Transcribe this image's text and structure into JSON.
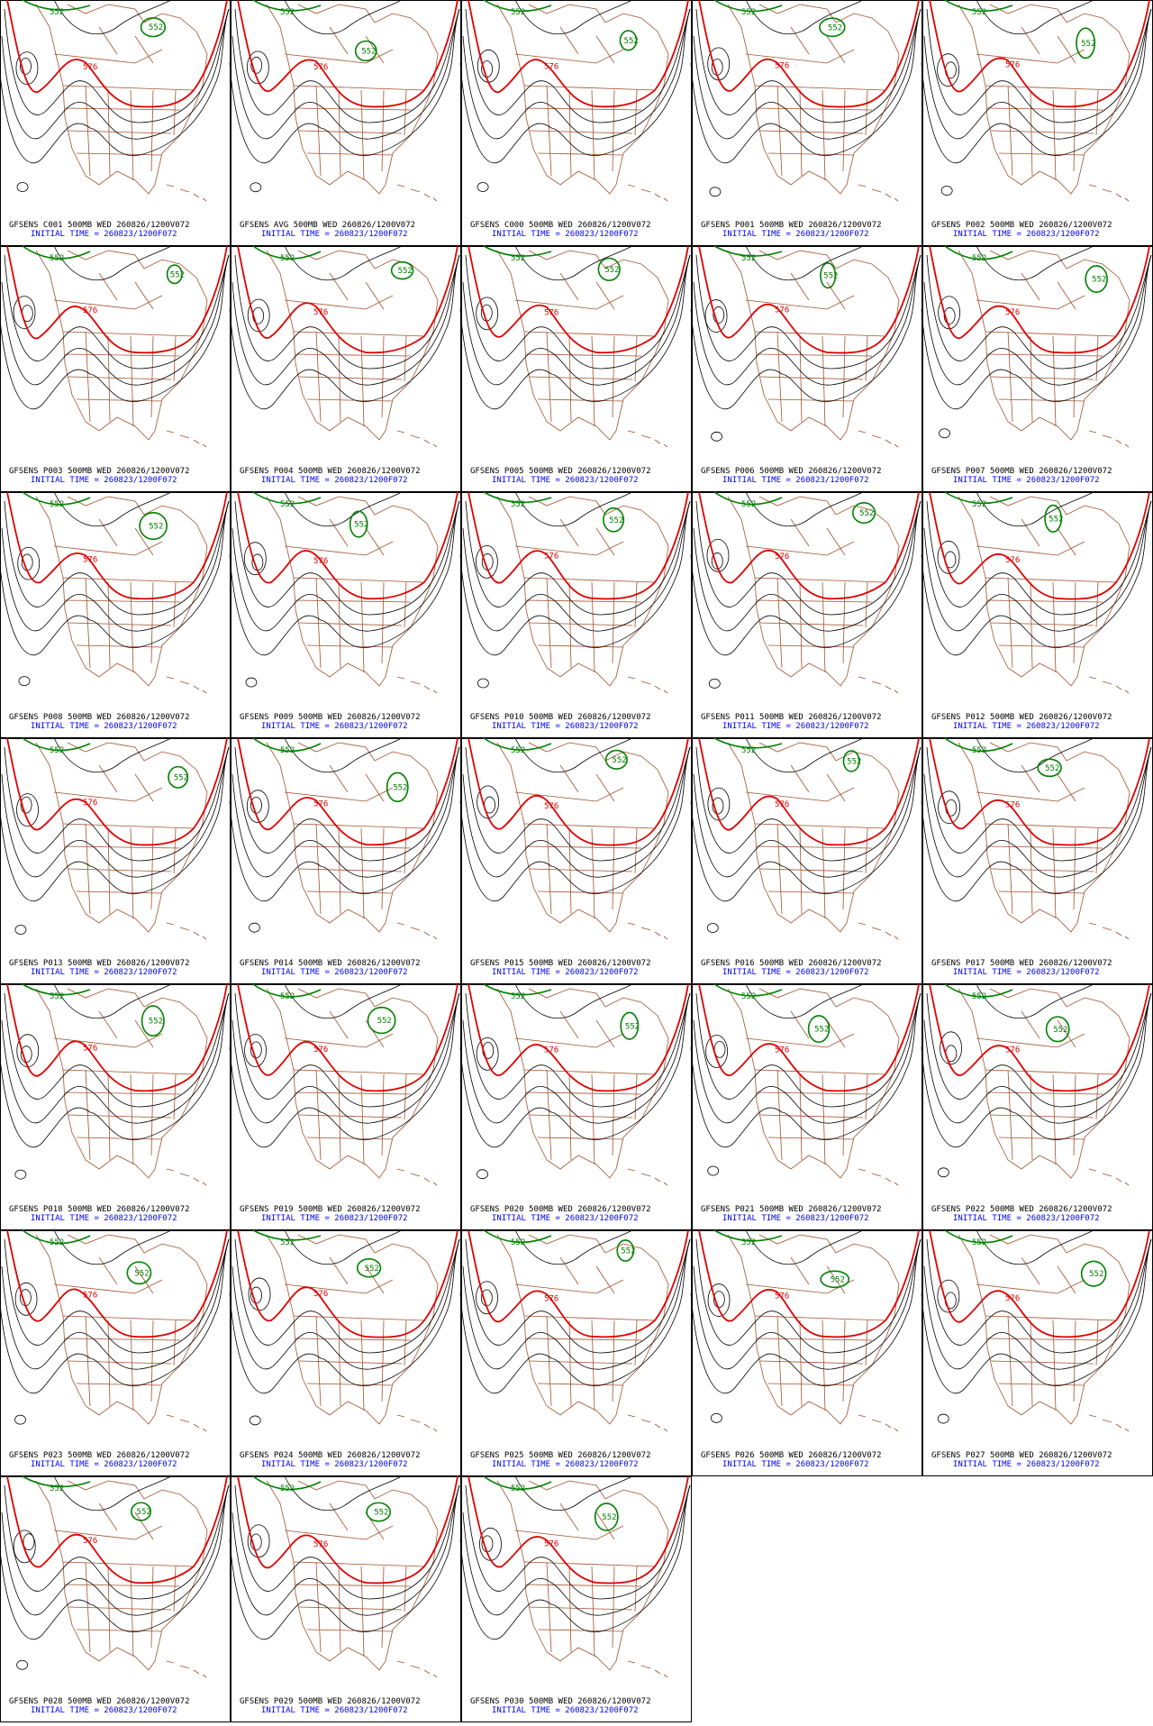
{
  "contour_labels": {
    "low": "552",
    "high": "576"
  },
  "panels": [
    {
      "title": "GFSENS C001 500MB WED 260826/1200V072",
      "initial": "INITIAL TIME = 260823/1200F072"
    },
    {
      "title": "GFSENS AVG 500MB WED 260826/1200V072",
      "initial": "INITIAL TIME = 260823/1200F072"
    },
    {
      "title": "GFSENS C000 500MB WED 260826/1200V072",
      "initial": "INITIAL TIME = 260823/1200F072"
    },
    {
      "title": "GFSENS P001 500MB WED 260826/1200V072",
      "initial": "INITIAL TIME = 260823/1200F072"
    },
    {
      "title": "GFSENS P002 500MB WED 260826/1200V072",
      "initial": "INITIAL TIME = 260823/1200F072"
    },
    {
      "title": "GFSENS P003 500MB WED 260826/1200V072",
      "initial": "INITIAL TIME = 260823/1200F072"
    },
    {
      "title": "GFSENS P004 500MB WED 260826/1200V072",
      "initial": "INITIAL TIME = 260823/1200F072"
    },
    {
      "title": "GFSENS P005 500MB WED 260826/1200V072",
      "initial": "INITIAL TIME = 260823/1200F072"
    },
    {
      "title": "GFSENS P006 500MB WED 260826/1200V072",
      "initial": "INITIAL TIME = 260823/1200F072"
    },
    {
      "title": "GFSENS P007 500MB WED 260826/1200V072",
      "initial": "INITIAL TIME = 260823/1200F072"
    },
    {
      "title": "GFSENS P008 500MB WED 260826/1200V072",
      "initial": "INITIAL TIME = 260823/1200F072"
    },
    {
      "title": "GFSENS P009 500MB WED 260826/1200V072",
      "initial": "INITIAL TIME = 260823/1200F072"
    },
    {
      "title": "GFSENS P010 500MB WED 260826/1200V072",
      "initial": "INITIAL TIME = 260823/1200F072"
    },
    {
      "title": "GFSENS P011 500MB WED 260826/1200V072",
      "initial": "INITIAL TIME = 260823/1200F072"
    },
    {
      "title": "GFSENS P012 500MB WED 260826/1200V072",
      "initial": "INITIAL TIME = 260823/1200F072"
    },
    {
      "title": "GFSENS P013 500MB WED 260826/1200V072",
      "initial": "INITIAL TIME = 260823/1200F072"
    },
    {
      "title": "GFSENS P014 500MB WED 260826/1200V072",
      "initial": "INITIAL TIME = 260823/1200F072"
    },
    {
      "title": "GFSENS P015 500MB WED 260826/1200V072",
      "initial": "INITIAL TIME = 260823/1200F072"
    },
    {
      "title": "GFSENS P016 500MB WED 260826/1200V072",
      "initial": "INITIAL TIME = 260823/1200F072"
    },
    {
      "title": "GFSENS P017 500MB WED 260826/1200V072",
      "initial": "INITIAL TIME = 260823/1200F072"
    },
    {
      "title": "GFSENS P018 500MB WED 260826/1200V072",
      "initial": "INITIAL TIME = 260823/1200F072"
    },
    {
      "title": "GFSENS P019 500MB WED 260826/1200V072",
      "initial": "INITIAL TIME = 260823/1200F072"
    },
    {
      "title": "GFSENS P020 500MB WED 260826/1200V072",
      "initial": "INITIAL TIME = 260823/1200F072"
    },
    {
      "title": "GFSENS P021 500MB WED 260826/1200V072",
      "initial": "INITIAL TIME = 260823/1200F072"
    },
    {
      "title": "GFSENS P022 500MB WED 260826/1200V072",
      "initial": "INITIAL TIME = 260823/1200F072"
    },
    {
      "title": "GFSENS P023 500MB WED 260826/1200V072",
      "initial": "INITIAL TIME = 260823/1200F072"
    },
    {
      "title": "GFSENS P024 500MB WED 260826/1200V072",
      "initial": "INITIAL TIME = 260823/1200F072"
    },
    {
      "title": "GFSENS P025 500MB WED 260826/1200V072",
      "initial": "INITIAL TIME = 260823/1200F072"
    },
    {
      "title": "GFSENS P026 500MB WED 260826/1200V072",
      "initial": "INITIAL TIME = 260823/1200F072"
    },
    {
      "title": "GFSENS P027 500MB WED 260826/1200V072",
      "initial": "INITIAL TIME = 260823/1200F072"
    },
    {
      "title": "GFSENS P028 500MB WED 260826/1200V072",
      "initial": "INITIAL TIME = 260823/1200F072"
    },
    {
      "title": "GFSENS P029 500MB WED 260826/1200V072",
      "initial": "INITIAL TIME = 260823/1200F072"
    },
    {
      "title": "GFSENS P030 500MB WED 260826/1200V072",
      "initial": "INITIAL TIME = 260823/1200F072"
    }
  ]
}
